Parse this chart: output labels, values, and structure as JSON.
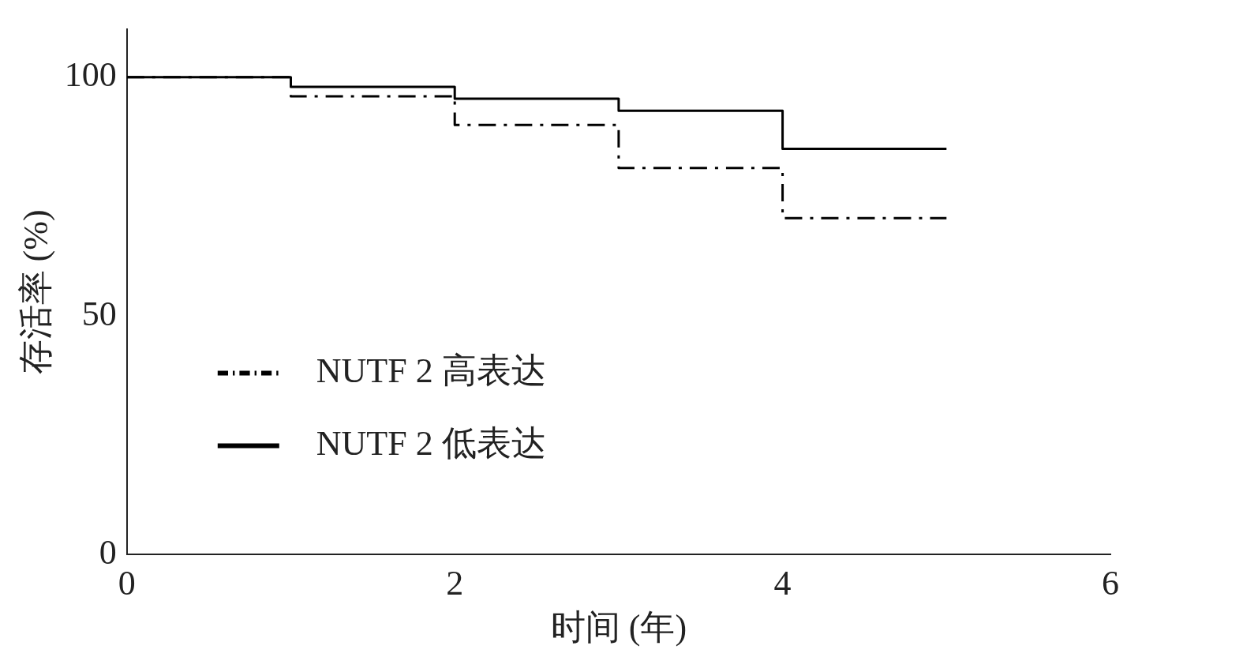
{
  "chart_data": {
    "type": "step",
    "xlabel": "时间 (年)",
    "ylabel": "存活率 (%)",
    "x": [
      0,
      1,
      2,
      3,
      4,
      5
    ],
    "series": [
      {
        "name": "NUTF 2 高表达",
        "color": "#000000",
        "line_style": "dashed",
        "values": [
          100,
          96,
          90,
          81,
          70.5,
          70.5
        ]
      },
      {
        "name": "NUTF 2 低表达",
        "color": "#000000",
        "line_style": "solid",
        "values": [
          100,
          98,
          95.5,
          93,
          85,
          85
        ]
      }
    ],
    "xlim": [
      0,
      6
    ],
    "xticks": [
      0,
      2,
      4,
      6
    ],
    "ylim": [
      0,
      110
    ],
    "yticks": [
      0,
      50,
      100
    ],
    "grid": false,
    "legend": "left",
    "marker": "none"
  }
}
